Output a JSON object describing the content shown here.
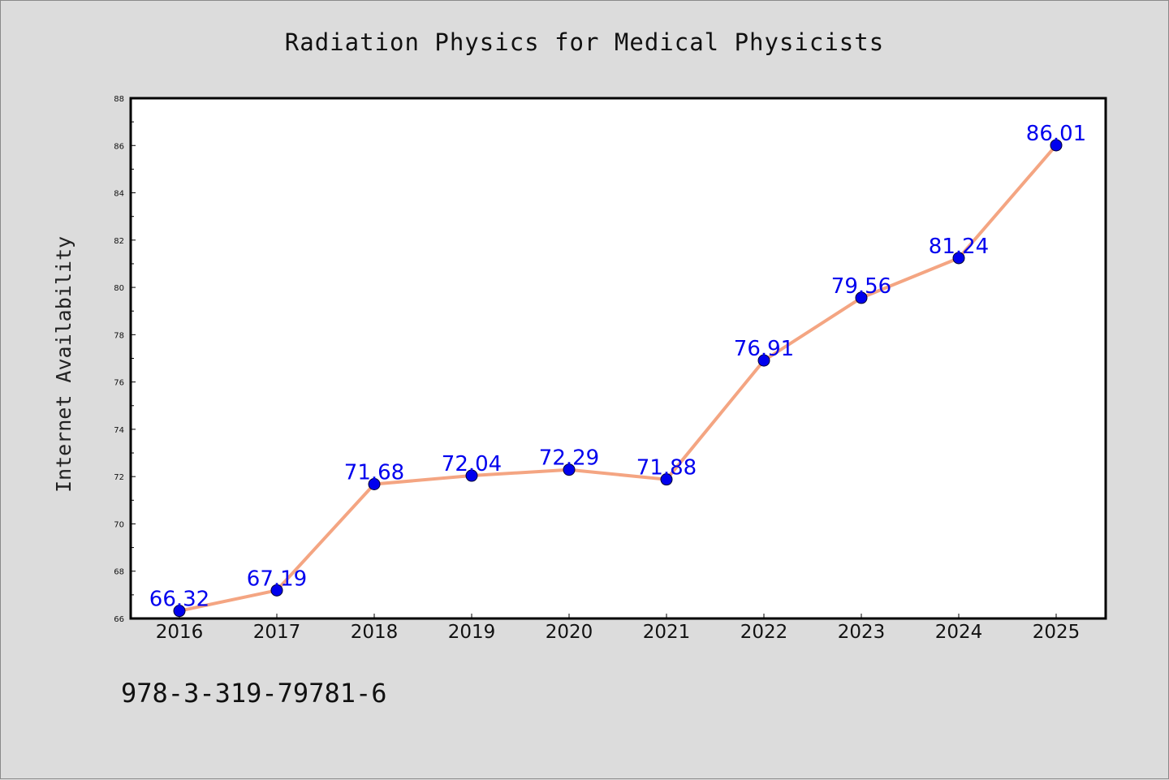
{
  "figure": {
    "title": "Radiation Physics for Medical Physicists",
    "footer_text": "978-3-319-79781-6"
  },
  "chart_data": {
    "type": "line",
    "title": "Radiation Physics for Medical Physicists",
    "xlabel": "",
    "ylabel": "Internet Availability",
    "categories": [
      "2016",
      "2017",
      "2018",
      "2019",
      "2020",
      "2021",
      "2022",
      "2023",
      "2024",
      "2025"
    ],
    "series": [
      {
        "values": [
          66.32,
          67.19,
          71.68,
          72.04,
          72.29,
          71.88,
          76.91,
          79.56,
          81.24,
          86.01
        ],
        "line_color": "#f4a582",
        "marker_color": "#0000ee",
        "label_color": "#0000ee"
      }
    ],
    "data_labels": [
      "66.32",
      "67.19",
      "71.68",
      "72.04",
      "72.29",
      "71.88",
      "76.91",
      "79.56",
      "81.24",
      "86.01"
    ],
    "ylim": [
      66,
      88
    ],
    "yticks": [
      "66",
      "68",
      "70",
      "72",
      "74",
      "76",
      "78",
      "80",
      "82",
      "84",
      "86",
      "88"
    ],
    "grid": false,
    "legend": "none"
  }
}
